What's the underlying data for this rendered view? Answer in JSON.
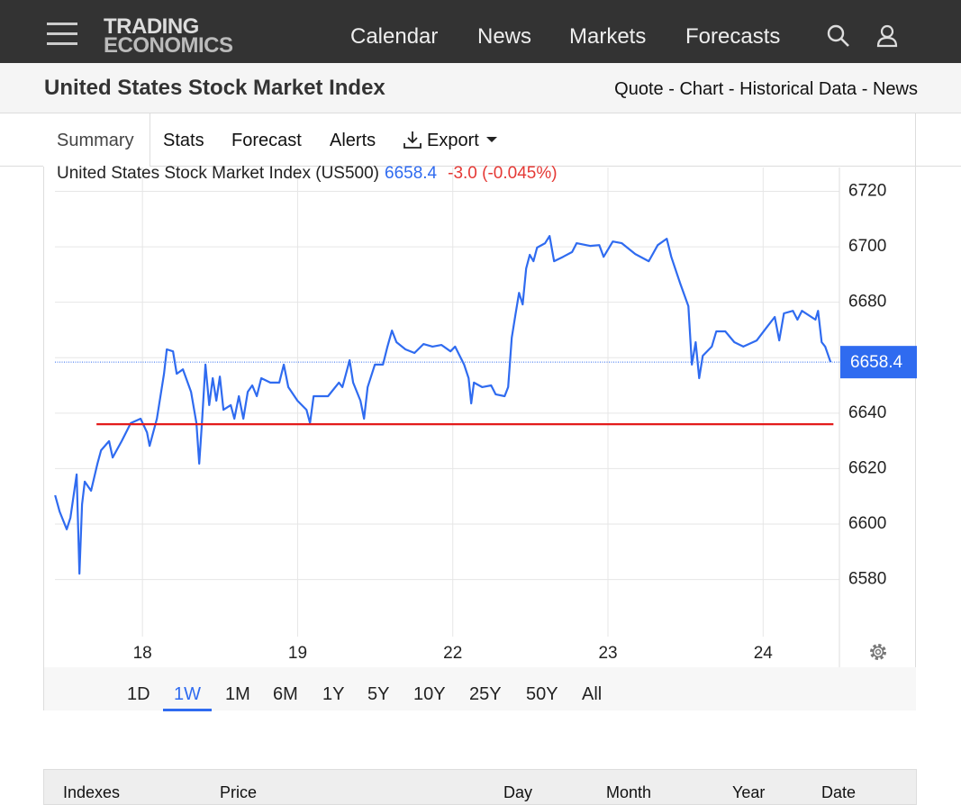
{
  "nav": {
    "logo": [
      "TRADING",
      "ECONOMICS"
    ],
    "links": [
      "Calendar",
      "News",
      "Markets",
      "Forecasts"
    ]
  },
  "header": {
    "title": "United States Stock Market Index",
    "links": [
      "Quote",
      "Chart",
      "Historical Data",
      "News"
    ],
    "separator": "-"
  },
  "tabs": [
    "Summary",
    "Stats",
    "Forecast",
    "Alerts",
    "Export"
  ],
  "chart_data": {
    "type": "line",
    "last_value": 6658.4,
    "change_label": "-3.0 (-0.045%)",
    "reference_line": 6636,
    "reference_color": "#e31b1b",
    "x": [
      -0.563,
      -0.534,
      -0.488,
      -0.464,
      -0.424,
      -0.406,
      -0.389,
      -0.372,
      -0.331,
      -0.29,
      -0.267,
      -0.215,
      -0.192,
      -0.134,
      -0.075,
      -0.012,
      0.029,
      0.046,
      0.093,
      0.139,
      0.157,
      0.197,
      0.221,
      0.261,
      0.313,
      0.348,
      0.366,
      0.383,
      0.406,
      0.43,
      0.453,
      0.476,
      0.499,
      0.522,
      0.569,
      0.592,
      0.621,
      0.65,
      0.679,
      0.708,
      0.737,
      0.766,
      0.824,
      0.882,
      0.911,
      0.94,
      0.999,
      1.057,
      1.08,
      1.103,
      1.149,
      1.196,
      1.266,
      1.289,
      1.335,
      1.358,
      1.405,
      1.428,
      1.451,
      1.498,
      1.55,
      1.579,
      1.608,
      1.637,
      1.695,
      1.753,
      1.811,
      1.869,
      1.927,
      1.985,
      2.015,
      2.073,
      2.102,
      2.119,
      2.136,
      2.189,
      2.247,
      2.276,
      2.334,
      2.357,
      2.38,
      2.403,
      2.427,
      2.45,
      2.473,
      2.496,
      2.52,
      2.543,
      2.595,
      2.624,
      2.653,
      2.711,
      2.769,
      2.798,
      2.885,
      2.944,
      2.972,
      3.031,
      3.089,
      3.176,
      3.263,
      3.321,
      3.379,
      3.408,
      3.466,
      3.518,
      3.541,
      3.565,
      3.588,
      3.611,
      3.669,
      3.698,
      3.756,
      3.814,
      3.872,
      3.959,
      4.017,
      4.075,
      4.104,
      4.134,
      4.192,
      4.221,
      4.25,
      4.337,
      4.354,
      4.377,
      4.4,
      4.435
    ],
    "series": [
      {
        "name": "United States Stock Market Index (US500)",
        "color": "#2f6bf0",
        "values": [
          6610.4,
          6604.5,
          6598.1,
          6602.3,
          6617.9,
          6582.1,
          6607.1,
          6615.3,
          6612,
          6621.8,
          6626.6,
          6629.9,
          6624,
          6629.9,
          6636.4,
          6638,
          6633.1,
          6628.2,
          6638,
          6654.2,
          6663,
          6662.3,
          6654.2,
          6655.8,
          6647.7,
          6636.4,
          6621.8,
          6636.4,
          6657.5,
          6642.9,
          6652.6,
          6644.5,
          6653.2,
          6641.2,
          6642.9,
          6638,
          6646.1,
          6638,
          6647.7,
          6650,
          6646.1,
          6652.6,
          6651,
          6651,
          6657.5,
          6649.4,
          6644.5,
          6641.2,
          6636.4,
          6646.1,
          6646.1,
          6646.1,
          6651,
          6649.4,
          6659.1,
          6651,
          6644.5,
          6638,
          6649.4,
          6657.5,
          6657.5,
          6664,
          6669.8,
          6665.6,
          6663,
          6661.7,
          6664.9,
          6664,
          6664.6,
          6662.3,
          6664,
          6657.5,
          6652.6,
          6643.5,
          6651,
          6649.4,
          6650,
          6646.8,
          6646.1,
          6649.4,
          6667.2,
          6675.3,
          6683.4,
          6679.2,
          6692.2,
          6697.1,
          6694.8,
          6699.7,
          6701.3,
          6703.9,
          6694.8,
          6696.4,
          6698.1,
          6701.3,
          6700.3,
          6700.6,
          6696.4,
          6701.9,
          6701.3,
          6697.4,
          6694.8,
          6700.6,
          6702.9,
          6696.4,
          6686.7,
          6678.6,
          6657.5,
          6665.6,
          6652.6,
          6660.7,
          6664,
          6669.5,
          6669.5,
          6665.6,
          6664,
          6666.2,
          6670.5,
          6674.7,
          6666.2,
          6676,
          6676.9,
          6673.7,
          6676.9,
          6673.7,
          6676.9,
          6665.6,
          6664,
          6658.4
        ]
      }
    ],
    "xlim": [
      -0.564,
      4.48
    ],
    "ylim": [
      6559.4,
      6728.6
    ],
    "xticks": [
      {
        "value": 0,
        "label": "18"
      },
      {
        "value": 1,
        "label": "19"
      },
      {
        "value": 2,
        "label": "22"
      },
      {
        "value": 3,
        "label": "23"
      },
      {
        "value": 4,
        "label": "24"
      }
    ],
    "yticks": [
      6580,
      6600,
      6620,
      6640,
      6660,
      6680,
      6700,
      6720
    ],
    "grid": true
  },
  "ranges": [
    "1D",
    "1W",
    "1M",
    "6M",
    "1Y",
    "5Y",
    "10Y",
    "25Y",
    "50Y",
    "All"
  ],
  "selected_range": "1W",
  "table": {
    "headers": [
      "Indexes",
      "Price",
      "Day",
      "Month",
      "Year",
      "Date"
    ]
  }
}
